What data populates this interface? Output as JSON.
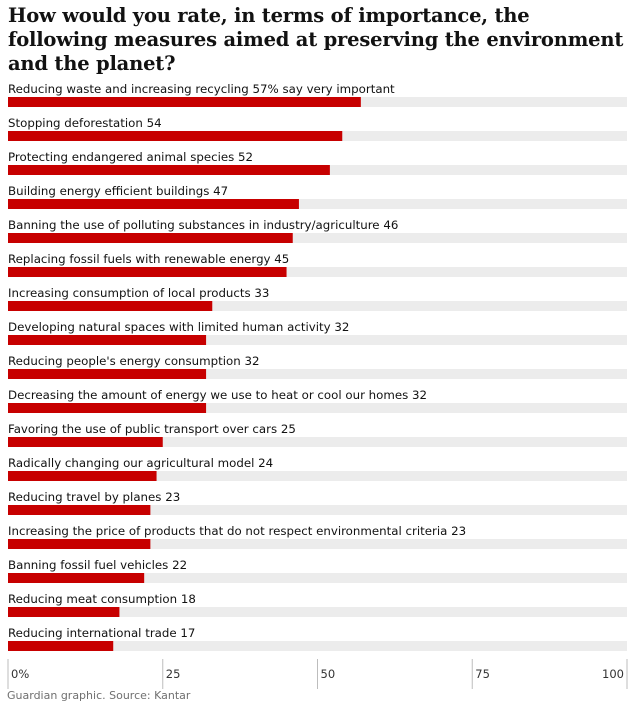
{
  "title": "How would you rate, in terms of importance, the following measures aimed at preserving the environment and the planet?",
  "source": "Guardian graphic. Source: Kantar",
  "colors": {
    "bar": "#c70000",
    "track": "#ececec",
    "axis_text": "#333333"
  },
  "chart_data": {
    "type": "bar",
    "orientation": "horizontal",
    "title": "How would you rate, in terms of importance, the following measures aimed at preserving the environment and the planet?",
    "xlim": [
      0,
      100
    ],
    "categories": [
      "Reducing waste and increasing recycling",
      "Stopping deforestation",
      "Protecting endangered animal species",
      "Building energy efficient buildings",
      "Banning the use of polluting substances in industry/agriculture",
      "Replacing fossil fuels with renewable energy",
      "Increasing consumption of local products",
      "Developing natural spaces with limited human activity",
      "Reducing people's energy consumption",
      "Decreasing the amount of energy we use to heat or cool our homes",
      "Favoring the use of public transport over cars",
      "Radically changing our agricultural model",
      "Reducing travel by planes",
      "Increasing the price of products that do not respect environmental criteria",
      "Banning fossil fuel vehicles",
      "Reducing meat consumption",
      "Reducing international trade"
    ],
    "values": [
      57,
      54,
      52,
      47,
      46,
      45,
      33,
      32,
      32,
      32,
      25,
      24,
      23,
      23,
      22,
      18,
      17
    ],
    "value_labels": [
      "57% say very important",
      "54",
      "52",
      "47",
      "46",
      "45",
      "33",
      "32",
      "32",
      "32",
      "25",
      "24",
      "23",
      "23",
      "22",
      "18",
      "17"
    ],
    "x_ticks": [
      {
        "value": 0,
        "label": "0%"
      },
      {
        "value": 25,
        "label": "25"
      },
      {
        "value": 50,
        "label": "50"
      },
      {
        "value": 75,
        "label": "75"
      },
      {
        "value": 100,
        "label": "100"
      }
    ]
  }
}
